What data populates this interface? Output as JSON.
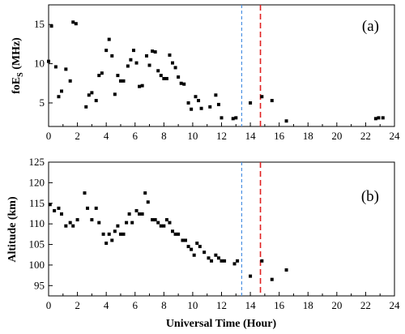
{
  "chart_data": [
    {
      "type": "scatter",
      "panel_label": "(a)",
      "ylabel_main": "foE",
      "ylabel_sub": "S",
      "ylabel_unit": " (MHz)",
      "xlim": [
        0,
        24
      ],
      "ylim": [
        2,
        17.5
      ],
      "xticks": [
        0,
        2,
        4,
        6,
        8,
        10,
        12,
        14,
        16,
        18,
        20,
        22,
        24
      ],
      "yticks": [
        5,
        10,
        15
      ],
      "series": [
        {
          "points": [
            [
              0.0,
              10.3
            ],
            [
              0.2,
              14.8
            ],
            [
              0.5,
              9.6
            ],
            [
              0.7,
              5.8
            ],
            [
              0.9,
              6.5
            ],
            [
              1.2,
              9.3
            ],
            [
              1.5,
              7.8
            ],
            [
              1.7,
              15.3
            ],
            [
              1.9,
              15.1
            ],
            [
              2.6,
              4.5
            ],
            [
              2.8,
              6.0
            ],
            [
              3.0,
              6.3
            ],
            [
              3.3,
              5.3
            ],
            [
              3.5,
              8.5
            ],
            [
              3.7,
              8.8
            ],
            [
              4.0,
              11.7
            ],
            [
              4.2,
              13.1
            ],
            [
              4.4,
              11.0
            ],
            [
              4.6,
              6.1
            ],
            [
              4.8,
              8.5
            ],
            [
              5.0,
              7.8
            ],
            [
              5.2,
              7.8
            ],
            [
              5.5,
              9.7
            ],
            [
              5.7,
              10.5
            ],
            [
              5.9,
              11.7
            ],
            [
              6.1,
              10.1
            ],
            [
              6.3,
              7.1
            ],
            [
              6.5,
              7.2
            ],
            [
              6.8,
              11.0
            ],
            [
              7.0,
              9.8
            ],
            [
              7.2,
              11.6
            ],
            [
              7.4,
              11.5
            ],
            [
              7.6,
              9.1
            ],
            [
              7.8,
              8.5
            ],
            [
              8.0,
              8.1
            ],
            [
              8.2,
              8.1
            ],
            [
              8.4,
              11.1
            ],
            [
              8.6,
              10.1
            ],
            [
              8.8,
              9.5
            ],
            [
              9.0,
              8.3
            ],
            [
              9.2,
              7.5
            ],
            [
              9.4,
              7.4
            ],
            [
              9.7,
              5.0
            ],
            [
              9.9,
              4.2
            ],
            [
              10.2,
              5.8
            ],
            [
              10.4,
              5.3
            ],
            [
              10.6,
              4.3
            ],
            [
              11.2,
              4.5
            ],
            [
              11.6,
              6.0
            ],
            [
              11.8,
              4.8
            ],
            [
              12.0,
              3.1
            ],
            [
              12.8,
              3.0
            ],
            [
              13.0,
              3.1
            ],
            [
              14.0,
              5.0
            ],
            [
              14.8,
              5.8
            ],
            [
              15.5,
              5.3
            ],
            [
              16.5,
              2.7
            ],
            [
              22.7,
              3.0
            ],
            [
              22.9,
              3.1
            ],
            [
              23.2,
              3.1
            ]
          ]
        }
      ],
      "vlines": [
        {
          "x": 13.4,
          "color": "#4a90e2",
          "style": "dashed"
        },
        {
          "x": 14.7,
          "color": "#e02020",
          "style": "dashed"
        }
      ]
    },
    {
      "type": "scatter",
      "panel_label": "(b)",
      "ylabel": "Altitude (km)",
      "xlabel": "Universal Time (Hour)",
      "xlim": [
        0,
        24
      ],
      "ylim": [
        92.5,
        125
      ],
      "xticks": [
        0,
        2,
        4,
        6,
        8,
        10,
        12,
        14,
        16,
        18,
        20,
        22,
        24
      ],
      "yticks": [
        95,
        100,
        105,
        110,
        115,
        120,
        125
      ],
      "series": [
        {
          "points": [
            [
              0.1,
              114.7
            ],
            [
              0.4,
              113.2
            ],
            [
              0.7,
              113.8
            ],
            [
              0.9,
              112.4
            ],
            [
              1.2,
              109.5
            ],
            [
              1.5,
              110.3
            ],
            [
              1.7,
              109.5
            ],
            [
              2.0,
              111.0
            ],
            [
              2.5,
              117.5
            ],
            [
              2.7,
              113.8
            ],
            [
              3.0,
              111.0
            ],
            [
              3.3,
              113.8
            ],
            [
              3.5,
              110.3
            ],
            [
              3.8,
              107.5
            ],
            [
              4.0,
              105.3
            ],
            [
              4.2,
              107.5
            ],
            [
              4.4,
              106.0
            ],
            [
              4.6,
              108.2
            ],
            [
              4.8,
              109.5
            ],
            [
              5.0,
              107.5
            ],
            [
              5.2,
              107.5
            ],
            [
              5.4,
              110.3
            ],
            [
              5.6,
              112.4
            ],
            [
              5.8,
              110.3
            ],
            [
              6.1,
              113.2
            ],
            [
              6.3,
              112.4
            ],
            [
              6.5,
              112.4
            ],
            [
              6.7,
              117.5
            ],
            [
              6.9,
              115.3
            ],
            [
              7.2,
              111.0
            ],
            [
              7.4,
              111.0
            ],
            [
              7.6,
              110.3
            ],
            [
              7.8,
              109.5
            ],
            [
              8.0,
              109.5
            ],
            [
              8.2,
              111.0
            ],
            [
              8.4,
              110.3
            ],
            [
              8.6,
              108.2
            ],
            [
              8.8,
              107.5
            ],
            [
              9.0,
              107.5
            ],
            [
              9.3,
              106.0
            ],
            [
              9.5,
              106.0
            ],
            [
              9.7,
              104.5
            ],
            [
              9.9,
              103.8
            ],
            [
              10.1,
              102.4
            ],
            [
              10.3,
              105.3
            ],
            [
              10.5,
              104.5
            ],
            [
              10.8,
              103.1
            ],
            [
              11.1,
              101.7
            ],
            [
              11.3,
              101.0
            ],
            [
              11.6,
              102.4
            ],
            [
              11.8,
              101.7
            ],
            [
              12.0,
              101.0
            ],
            [
              12.2,
              101.0
            ],
            [
              12.9,
              100.3
            ],
            [
              13.1,
              101.0
            ],
            [
              14.0,
              97.3
            ],
            [
              14.8,
              101.0
            ],
            [
              15.5,
              96.5
            ],
            [
              16.5,
              98.8
            ]
          ]
        }
      ],
      "vlines": [
        {
          "x": 13.4,
          "color": "#4a90e2",
          "style": "dashed"
        },
        {
          "x": 14.7,
          "color": "#e02020",
          "style": "dashed"
        }
      ]
    }
  ]
}
